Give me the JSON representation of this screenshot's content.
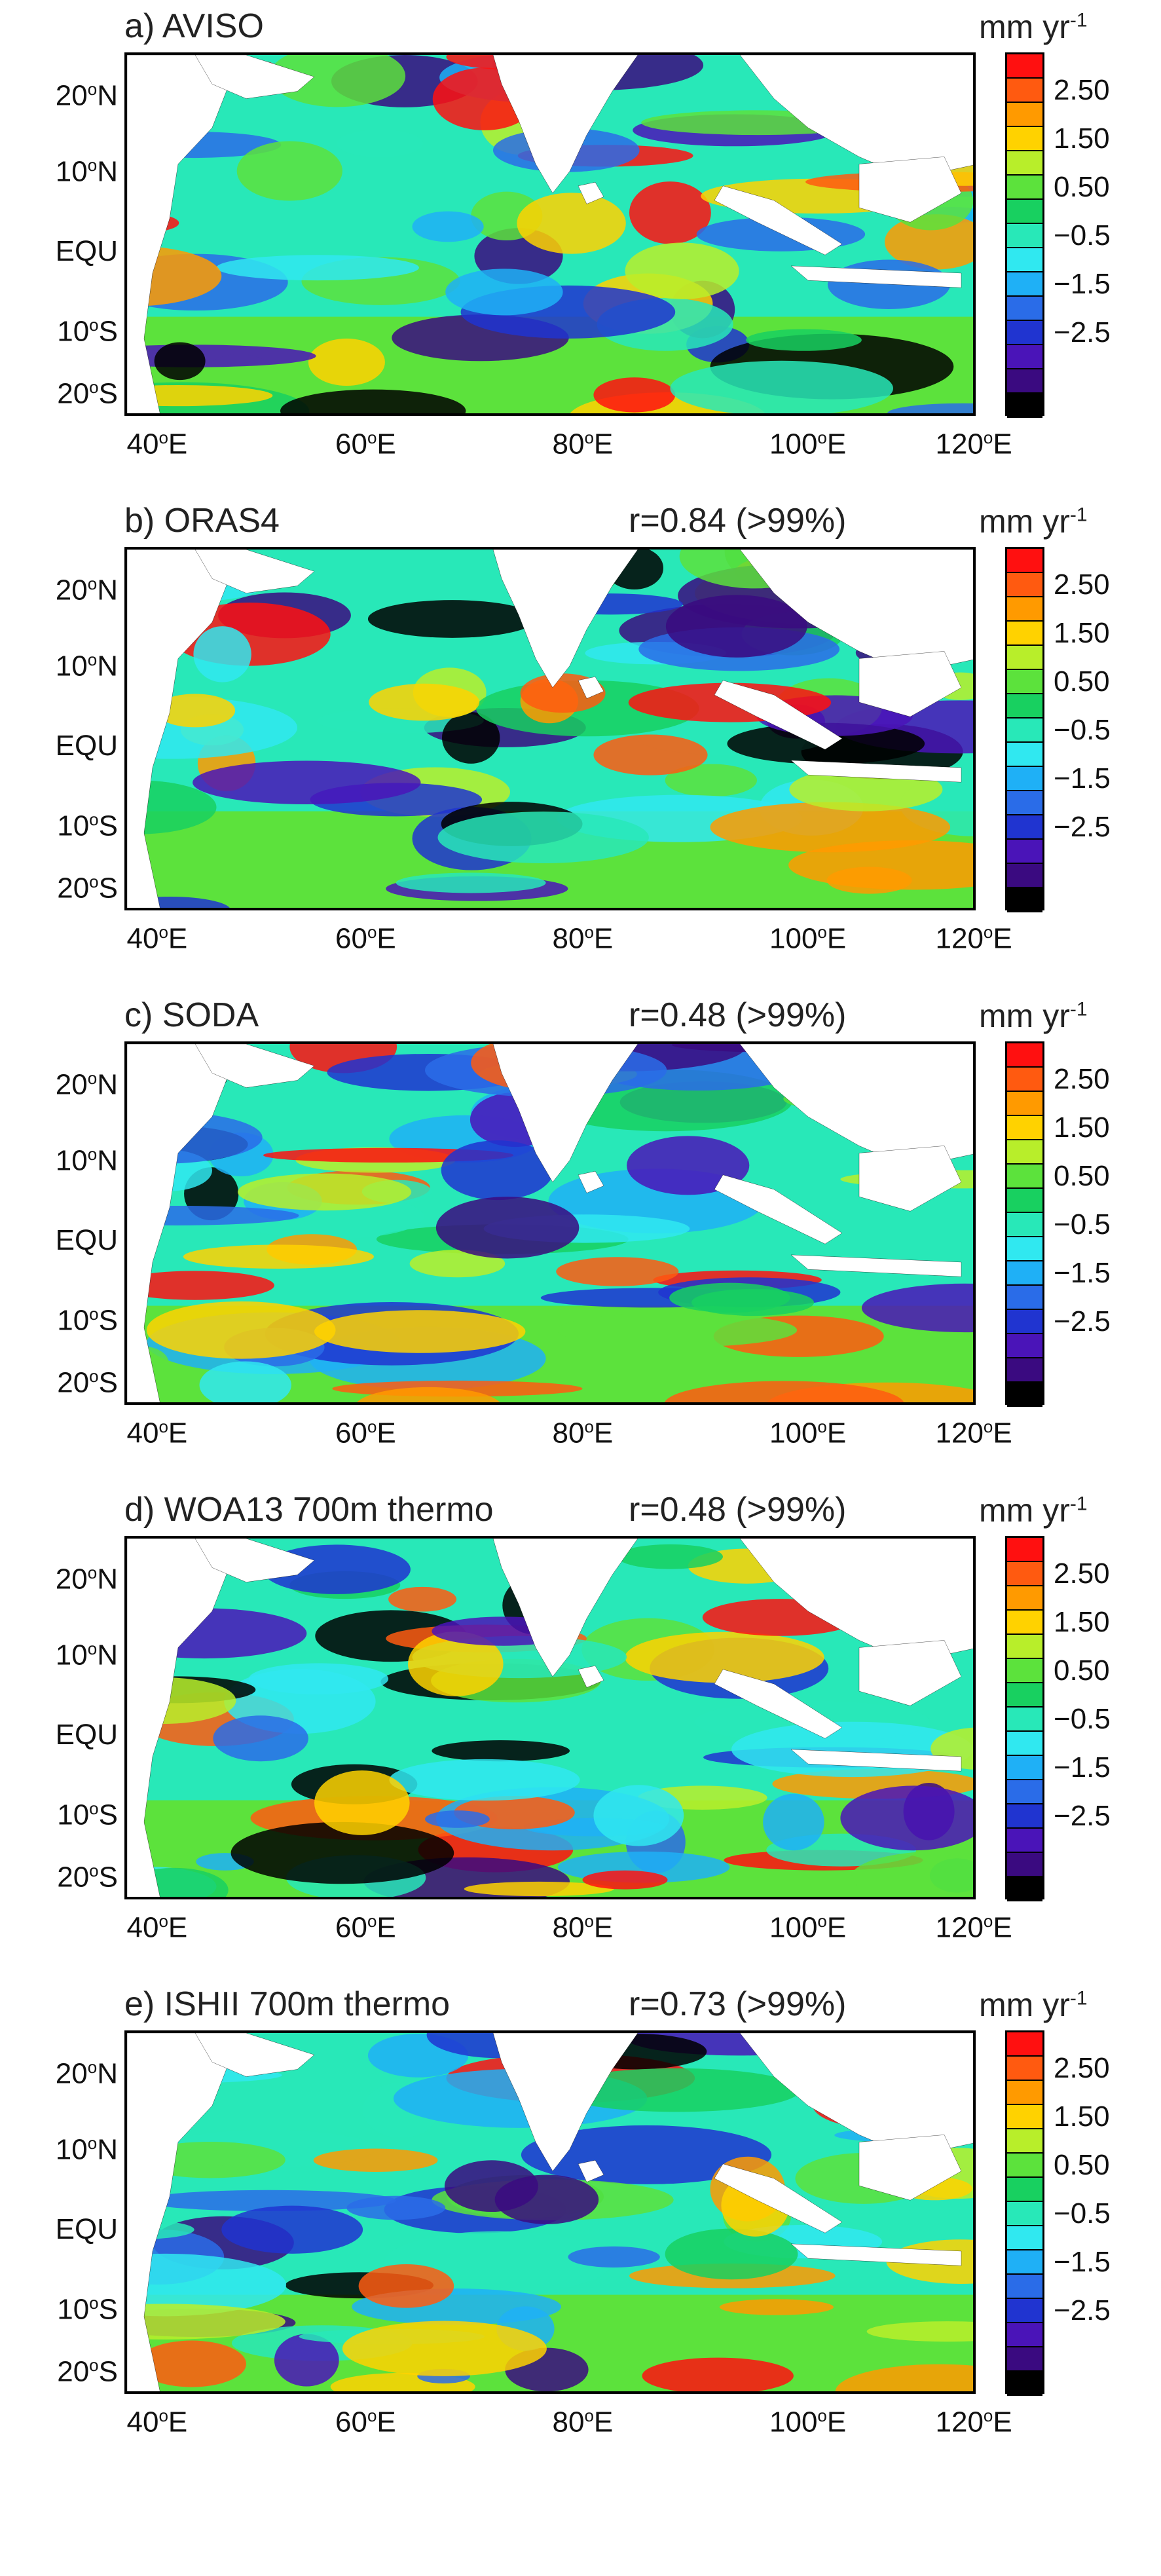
{
  "figure": {
    "units": "mm yr",
    "units_exponent": "-1",
    "colorbar": {
      "labels": [
        "2.50",
        "1.50",
        "0.50",
        "−0.5",
        "−1.5",
        "−2.5"
      ],
      "colors": [
        "#ff1010",
        "#ff5a10",
        "#ff9a00",
        "#ffd200",
        "#b8ee2a",
        "#5ce23c",
        "#18d060",
        "#28e8b8",
        "#30e8f0",
        "#1fb0f6",
        "#2a6ce8",
        "#2034d0",
        "#4a14b8",
        "#3a0a80",
        "#000000"
      ]
    },
    "lat_ticks": [
      "20",
      "10",
      "EQU",
      "10",
      "20"
    ],
    "lat_suffix": [
      "N",
      "N",
      "",
      "S",
      "S"
    ],
    "lon_ticks": [
      "40",
      "60",
      "80",
      "100",
      "120"
    ],
    "lon_suffix": "E",
    "degree": "o"
  },
  "panels": [
    {
      "title": "a) AVISO",
      "corr": ""
    },
    {
      "title": "b) ORAS4",
      "corr": "r=0.84 (>99%)"
    },
    {
      "title": "c) SODA",
      "corr": "r=0.48 (>99%)"
    },
    {
      "title": "d) WOA13 700m thermo",
      "corr": "r=0.48 (>99%)"
    },
    {
      "title": "e) ISHII 700m thermo",
      "corr": "r=0.73 (>99%)"
    }
  ]
}
